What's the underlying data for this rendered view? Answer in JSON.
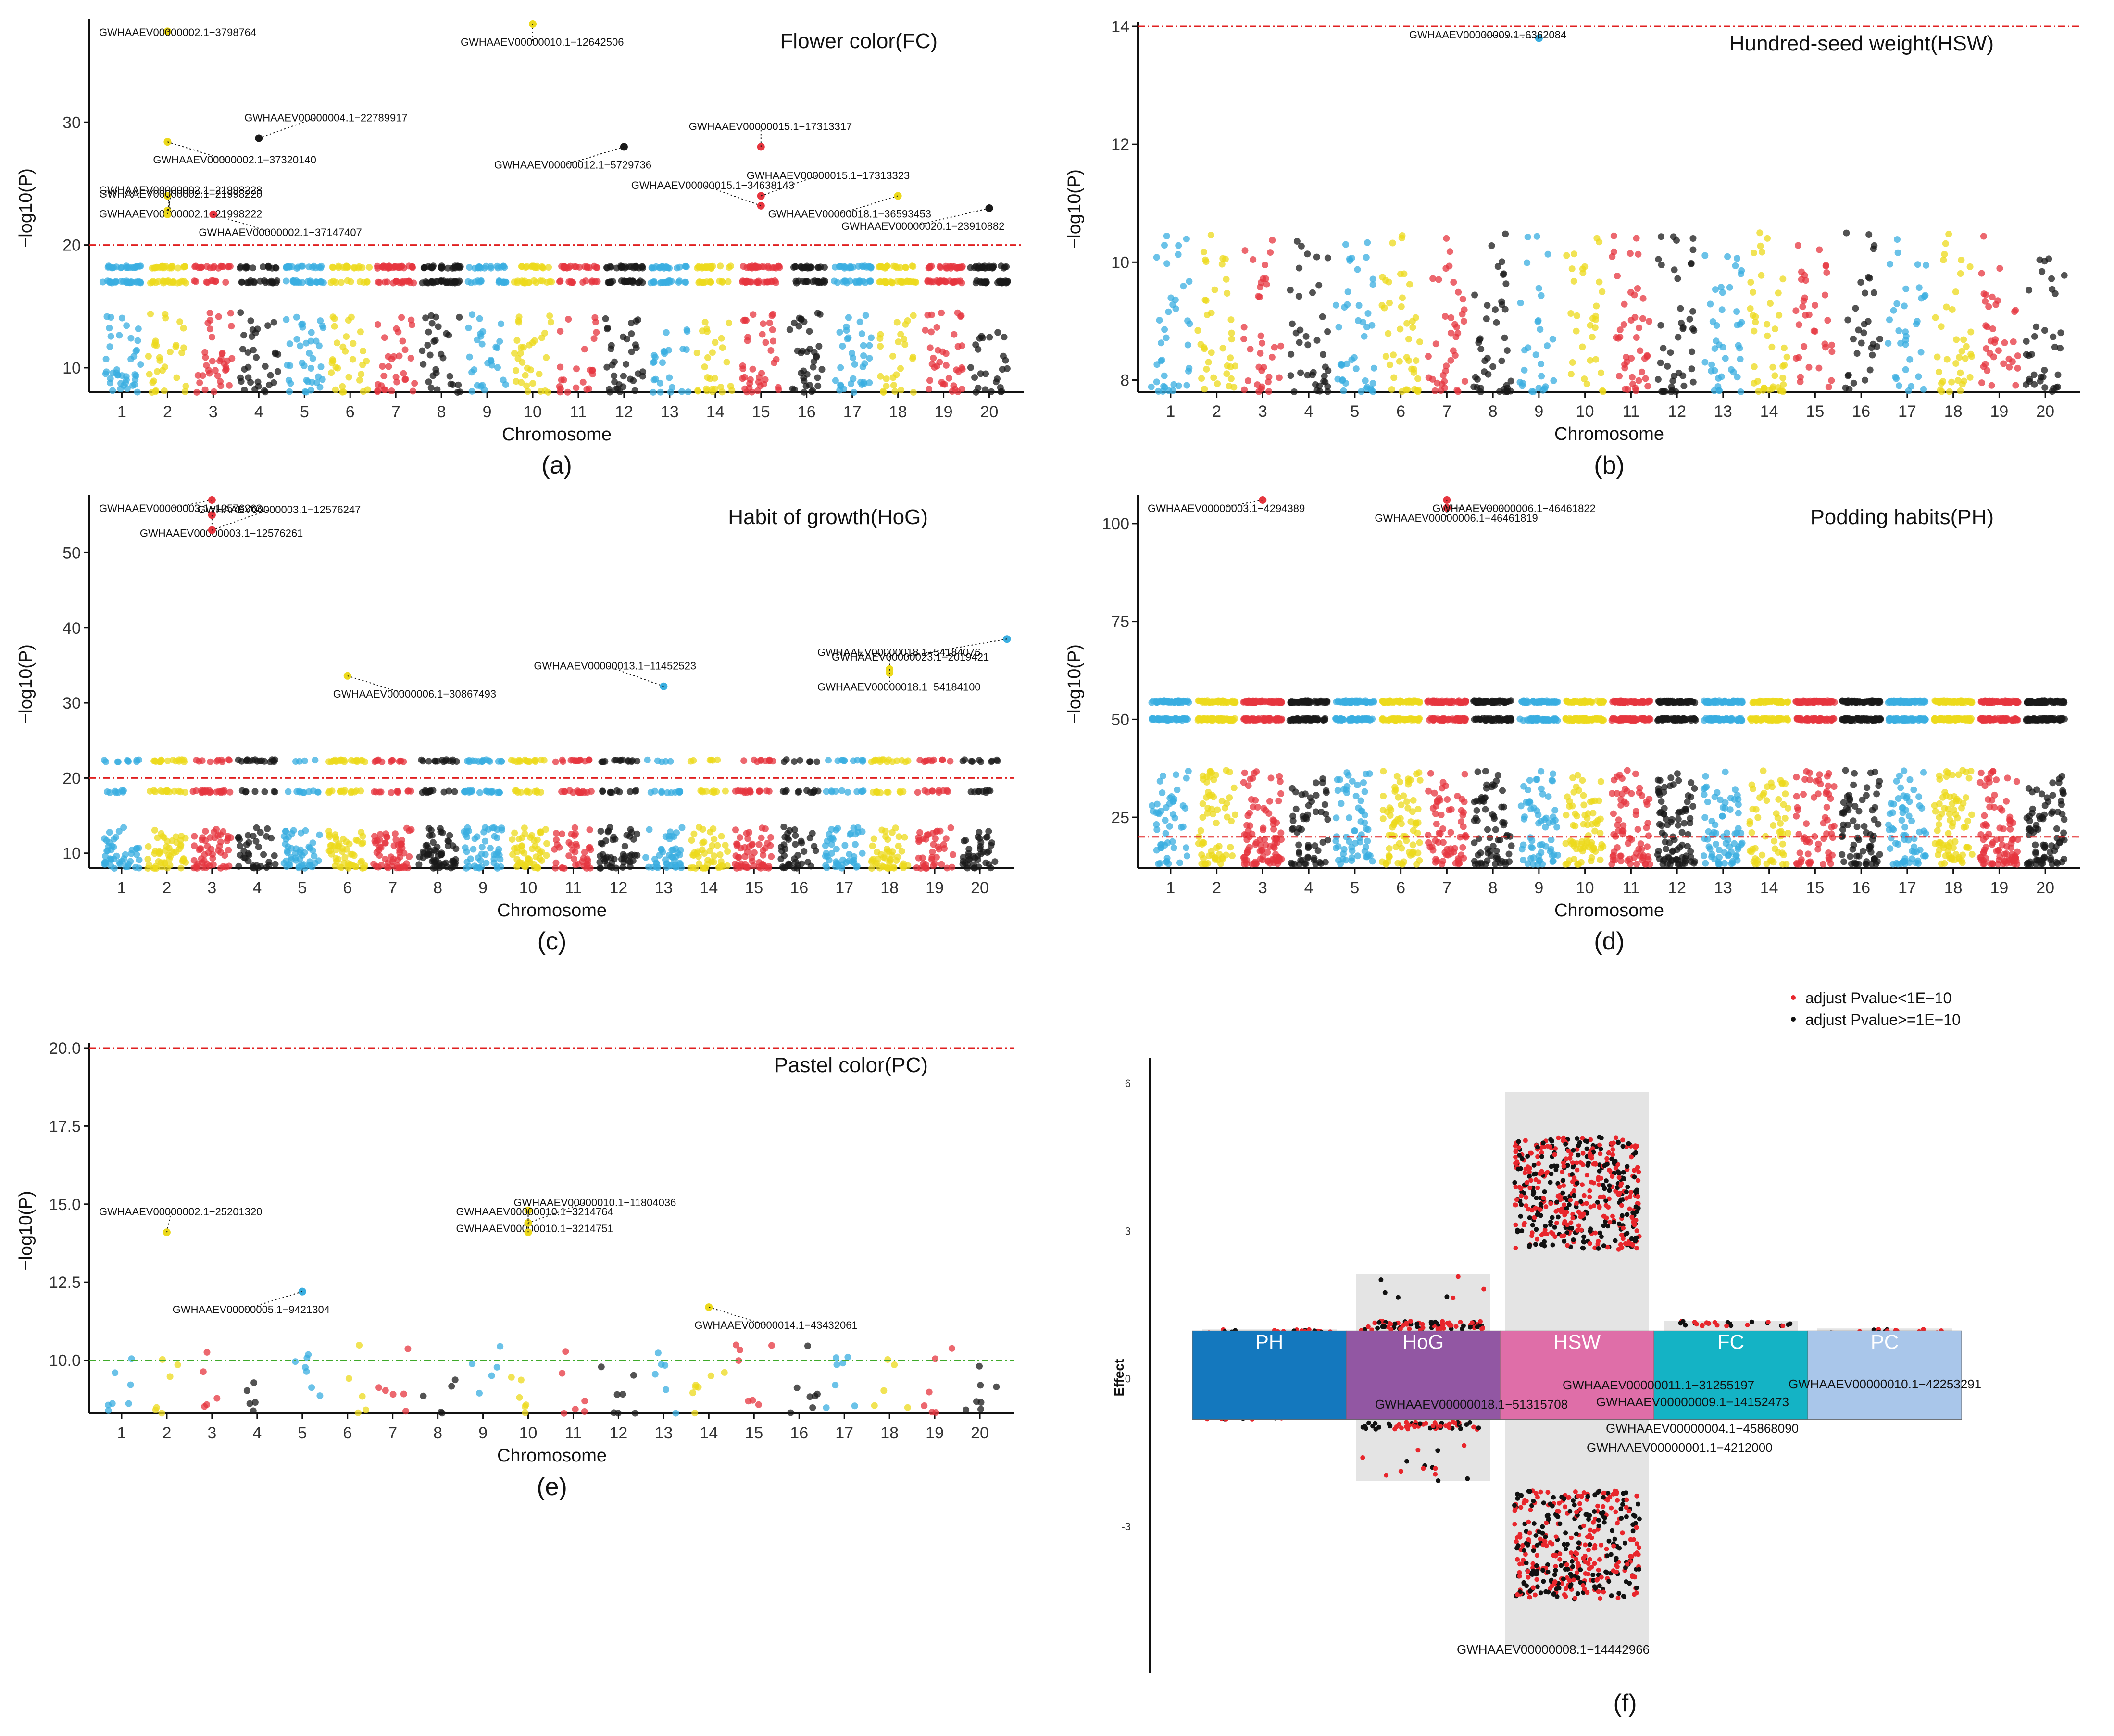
{
  "colors": {
    "blue": "#3aaee0",
    "yellow": "#ecd91c",
    "red": "#e6363f",
    "black": "#1a1a1a",
    "threshold_red": "#e02020",
    "threshold_green": "#3faa2a",
    "sig_red": "#e8262c",
    "band_bg": "#e4e4e4"
  },
  "chart_data": [
    {
      "id": "a",
      "type": "scatter",
      "panel_label": "(a)",
      "title": "Flower color(FC)",
      "xlabel": "Chromosome",
      "ylabel": "−log10(P)",
      "ylim": [
        8,
        38
      ],
      "yticks": [
        10,
        20,
        30
      ],
      "threshold": 20,
      "categories": [
        "1",
        "2",
        "3",
        "4",
        "5",
        "6",
        "7",
        "8",
        "9",
        "10",
        "11",
        "12",
        "13",
        "14",
        "15",
        "16",
        "17",
        "18",
        "19",
        "20"
      ],
      "highlights": [
        {
          "label": "GWHAAEV00000002.1−3798764",
          "chr": 2,
          "y": 37.4
        },
        {
          "label": "GWHAAEV00000010.1−12642506",
          "chr": 10,
          "y": 38
        },
        {
          "label": "GWHAAEV00000004.1−22789917",
          "chr": 4,
          "y": 28.7
        },
        {
          "label": "GWHAAEV00000012.1−5729736",
          "chr": 12,
          "y": 28
        },
        {
          "label": "GWHAAEV00000015.1−17313317",
          "chr": 15,
          "y": 28
        },
        {
          "label": "GWHAAEV00000002.1−37320140",
          "chr": 2,
          "y": 28.4
        },
        {
          "label": "GWHAAEV00000002.1−21998228",
          "chr": 2,
          "y": 22.8
        },
        {
          "label": "GWHAAEV00000002.1−21998222",
          "chr": 2,
          "y": 24
        },
        {
          "label": "GWHAAEV00000015.1−17313323",
          "chr": 15,
          "y": 24
        },
        {
          "label": "GWHAAEV00000018.1−36593453",
          "chr": 18,
          "y": 24
        },
        {
          "label": "GWHAAEV00000002.1−21998220",
          "chr": 2,
          "y": 22.5
        },
        {
          "label": "GWHAAEV00000002.1−37147407",
          "chr": 3,
          "y": 22.5
        },
        {
          "label": "GWHAAEV00000015.1−34638143",
          "chr": 15,
          "y": 23.2
        },
        {
          "label": "GWHAAEV00000020.1−23910882",
          "chr": 20,
          "y": 23
        }
      ]
    },
    {
      "id": "b",
      "type": "scatter",
      "panel_label": "(b)",
      "title": "Hundred-seed weight(HSW)",
      "xlabel": "Chromosome",
      "ylabel": "−log10(P)",
      "ylim": [
        7.8,
        14
      ],
      "yticks": [
        8,
        10,
        12,
        14
      ],
      "threshold": 14,
      "categories": [
        "1",
        "2",
        "3",
        "4",
        "5",
        "6",
        "7",
        "8",
        "9",
        "10",
        "11",
        "12",
        "13",
        "14",
        "15",
        "16",
        "17",
        "18",
        "19",
        "20"
      ],
      "highlights": [
        {
          "label": "GWHAAEV00000009.1−6362084",
          "chr": 9,
          "y": 13.8
        }
      ]
    },
    {
      "id": "c",
      "type": "scatter",
      "panel_label": "(c)",
      "title": "Habit of growth(HoG)",
      "xlabel": "Chromosome",
      "ylabel": "−log10(P)",
      "ylim": [
        8,
        57
      ],
      "yticks": [
        10,
        20,
        30,
        40,
        50
      ],
      "threshold": 20,
      "categories": [
        "1",
        "2",
        "3",
        "4",
        "5",
        "6",
        "7",
        "8",
        "9",
        "10",
        "11",
        "12",
        "13",
        "14",
        "15",
        "16",
        "17",
        "18",
        "19",
        "20"
      ],
      "highlights": [
        {
          "label": "GWHAAEV00000003.1−12576263",
          "chr": 3,
          "y": 57
        },
        {
          "label": "GWHAAEV00000003.1−12576261",
          "chr": 3,
          "y": 55
        },
        {
          "label": "GWHAAEV00000003.1−12576247",
          "chr": 3,
          "y": 53
        },
        {
          "label": "GWHAAEV00000023.1−2019421",
          "chr": 21,
          "y": 38.5
        },
        {
          "label": "GWHAAEV00000018.1−54184076",
          "chr": 18,
          "y": 34
        },
        {
          "label": "GWHAAEV00000006.1−30867493",
          "chr": 6,
          "y": 33.6
        },
        {
          "label": "GWHAAEV00000013.1−11452523",
          "chr": 13,
          "y": 32.2
        },
        {
          "label": "GWHAAEV00000018.1−54184100",
          "chr": 18,
          "y": 34.5
        }
      ]
    },
    {
      "id": "d",
      "type": "scatter",
      "panel_label": "(d)",
      "title": "Podding habits(PH)",
      "xlabel": "Chromosome",
      "ylabel": "−log10(P)",
      "ylim": [
        12,
        106
      ],
      "yticks": [
        25,
        50,
        75,
        100
      ],
      "threshold": 20,
      "categories": [
        "1",
        "2",
        "3",
        "4",
        "5",
        "6",
        "7",
        "8",
        "9",
        "10",
        "11",
        "12",
        "13",
        "14",
        "15",
        "16",
        "17",
        "18",
        "19",
        "20"
      ],
      "highlights": [
        {
          "label": "GWHAAEV00000003.1−4294389",
          "chr": 3,
          "y": 106
        },
        {
          "label": "GWHAAEV00000006.1−46461819",
          "chr": 7,
          "y": 106
        },
        {
          "label": "GWHAAEV00000006.1−46461822",
          "chr": 7,
          "y": 104
        }
      ]
    },
    {
      "id": "e",
      "type": "scatter",
      "panel_label": "(e)",
      "title": "Pastel color(PC)",
      "xlabel": "Chromosome",
      "ylabel": "−log10(P)",
      "ylim": [
        8.3,
        20
      ],
      "yticks": [
        10.0,
        12.5,
        15.0,
        17.5,
        20.0
      ],
      "threshold": 20,
      "threshold2": 10,
      "categories": [
        "1",
        "2",
        "3",
        "4",
        "5",
        "6",
        "7",
        "8",
        "9",
        "10",
        "11",
        "12",
        "13",
        "14",
        "15",
        "16",
        "17",
        "18",
        "19",
        "20"
      ],
      "highlights": [
        {
          "label": "GWHAAEV00000002.1−25201320",
          "chr": 2,
          "y": 14.1
        },
        {
          "label": "GWHAAEV00000010.1−3214751",
          "chr": 10,
          "y": 14.8
        },
        {
          "label": "GWHAAEV00000010.1−11804036",
          "chr": 10,
          "y": 14.4
        },
        {
          "label": "GWHAAEV00000005.1−9421304",
          "chr": 5,
          "y": 12.2
        },
        {
          "label": "GWHAAEV00000010.1−3214764",
          "chr": 10,
          "y": 14.1
        },
        {
          "label": "GWHAAEV00000014.1−43432061",
          "chr": 14,
          "y": 11.7
        }
      ]
    },
    {
      "id": "f",
      "type": "scatter",
      "panel_label": "(f)",
      "ylabel": "Effect",
      "ylim": [
        -6,
        6.5
      ],
      "yticks": [
        -3,
        0,
        3,
        6
      ],
      "legend": [
        "adjust Pvalue<1E−10",
        "adjust Pvalue>=1E−10"
      ],
      "traits": [
        {
          "name": "PH",
          "color": "#1478be",
          "upper": 0.98,
          "lower": -0.85
        },
        {
          "name": "HoG",
          "color": "#9257a3",
          "upper": 2.1,
          "lower": -2.1
        },
        {
          "name": "HSW",
          "color": "#df6ea8",
          "upper": 5.8,
          "lower": -5.5
        },
        {
          "name": "FC",
          "color": "#14b3c5",
          "upper": 1.15,
          "lower": -0.5
        },
        {
          "name": "PC",
          "color": "#a9c6ea",
          "upper": 1.0,
          "lower": -0.8
        }
      ],
      "annotations": [
        "GWHAAEV00000011.1−31255197",
        "GWHAAEV00000010.1−42253291",
        "GWHAAEV00000018.1−51315708",
        "GWHAAEV00000009.1−14152473",
        "GWHAAEV00000004.1−45868090",
        "GWHAAEV00000001.1−4212000",
        "GWHAAEV00000008.1−14442966"
      ]
    }
  ]
}
